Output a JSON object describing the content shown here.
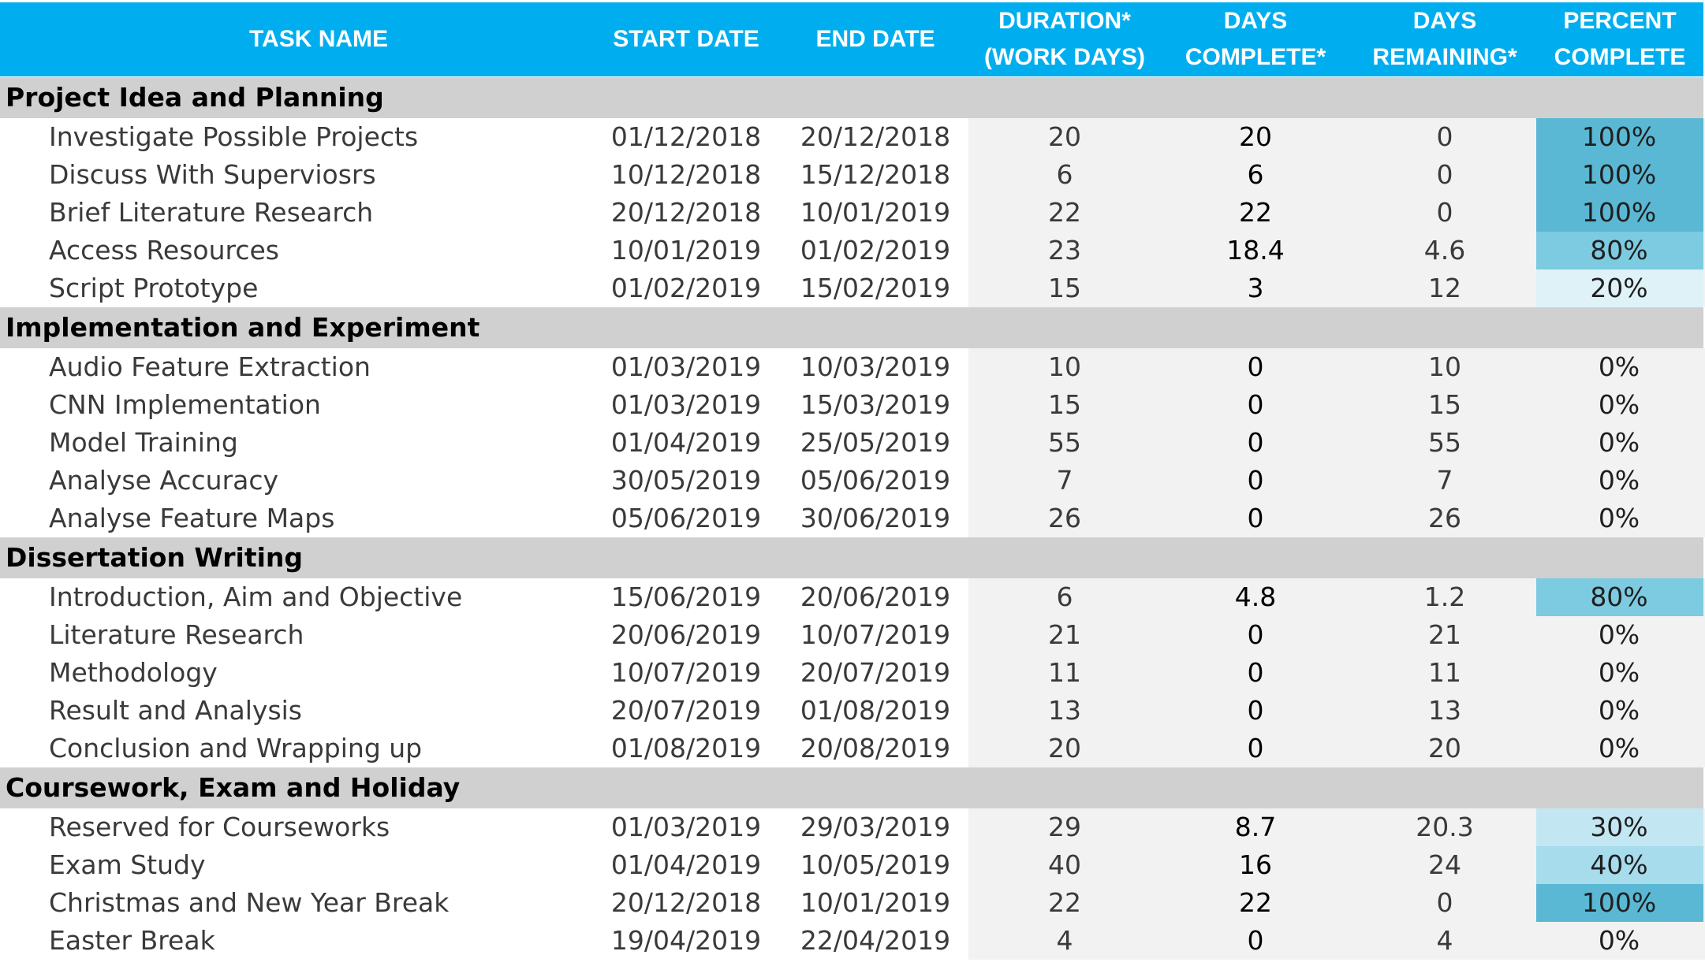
{
  "header": {
    "task_name": "TASK NAME",
    "start_date": "START DATE",
    "end_date": "END DATE",
    "duration_1": "DURATION*",
    "duration_2": "(WORK DAYS)",
    "days_complete_1": "DAYS",
    "days_complete_2": "COMPLETE*",
    "days_remaining_1": "DAYS",
    "days_remaining_2": "REMAINING*",
    "percent_1": "PERCENT",
    "percent_2": "COMPLETE"
  },
  "colors": {
    "header_bg": "#00aeef",
    "section_bg": "#d0d0d0",
    "pct_100": "#5ab8d4",
    "pct_80": "#7ccbe0",
    "pct_40": "#a6dcec",
    "pct_30": "#c3e7f2",
    "pct_20": "#def2f8"
  },
  "sections": [
    {
      "title": "Project Idea and Planning",
      "tasks": [
        {
          "name": "Investigate Possible Projects",
          "start": "01/12/2018",
          "end": "20/12/2018",
          "duration": "20",
          "days_complete": "20",
          "days_remaining": "0",
          "percent": "100%",
          "percent_value": 100
        },
        {
          "name": "Discuss With Superviosrs",
          "start": "10/12/2018",
          "end": "15/12/2018",
          "duration": "6",
          "days_complete": "6",
          "days_remaining": "0",
          "percent": "100%",
          "percent_value": 100
        },
        {
          "name": "Brief Literature Research",
          "start": "20/12/2018",
          "end": "10/01/2019",
          "duration": "22",
          "days_complete": "22",
          "days_remaining": "0",
          "percent": "100%",
          "percent_value": 100
        },
        {
          "name": "Access Resources",
          "start": "10/01/2019",
          "end": "01/02/2019",
          "duration": "23",
          "days_complete": "18.4",
          "days_remaining": "4.6",
          "percent": "80%",
          "percent_value": 80
        },
        {
          "name": "Script Prototype",
          "start": "01/02/2019",
          "end": "15/02/2019",
          "duration": "15",
          "days_complete": "3",
          "days_remaining": "12",
          "percent": "20%",
          "percent_value": 20
        }
      ]
    },
    {
      "title": "Implementation and Experiment",
      "tasks": [
        {
          "name": "Audio Feature Extraction",
          "start": "01/03/2019",
          "end": "10/03/2019",
          "duration": "10",
          "days_complete": "0",
          "days_remaining": "10",
          "percent": "0%",
          "percent_value": 0
        },
        {
          "name": "CNN Implementation",
          "start": "01/03/2019",
          "end": "15/03/2019",
          "duration": "15",
          "days_complete": "0",
          "days_remaining": "15",
          "percent": "0%",
          "percent_value": 0
        },
        {
          "name": "Model Training",
          "start": "01/04/2019",
          "end": "25/05/2019",
          "duration": "55",
          "days_complete": "0",
          "days_remaining": "55",
          "percent": "0%",
          "percent_value": 0
        },
        {
          "name": "Analyse Accuracy",
          "start": "30/05/2019",
          "end": "05/06/2019",
          "duration": "7",
          "days_complete": "0",
          "days_remaining": "7",
          "percent": "0%",
          "percent_value": 0
        },
        {
          "name": "Analyse Feature Maps",
          "start": "05/06/2019",
          "end": "30/06/2019",
          "duration": "26",
          "days_complete": "0",
          "days_remaining": "26",
          "percent": "0%",
          "percent_value": 0
        }
      ]
    },
    {
      "title": "Dissertation Writing",
      "tasks": [
        {
          "name": "Introduction, Aim and Objective",
          "start": "15/06/2019",
          "end": "20/06/2019",
          "duration": "6",
          "days_complete": "4.8",
          "days_remaining": "1.2",
          "percent": "80%",
          "percent_value": 80
        },
        {
          "name": "Literature Research",
          "start": "20/06/2019",
          "end": "10/07/2019",
          "duration": "21",
          "days_complete": "0",
          "days_remaining": "21",
          "percent": "0%",
          "percent_value": 0
        },
        {
          "name": "Methodology",
          "start": "10/07/2019",
          "end": "20/07/2019",
          "duration": "11",
          "days_complete": "0",
          "days_remaining": "11",
          "percent": "0%",
          "percent_value": 0
        },
        {
          "name": "Result and Analysis",
          "start": "20/07/2019",
          "end": "01/08/2019",
          "duration": "13",
          "days_complete": "0",
          "days_remaining": "13",
          "percent": "0%",
          "percent_value": 0
        },
        {
          "name": "Conclusion and Wrapping up",
          "start": "01/08/2019",
          "end": "20/08/2019",
          "duration": "20",
          "days_complete": "0",
          "days_remaining": "20",
          "percent": "0%",
          "percent_value": 0
        }
      ]
    },
    {
      "title": "Coursework, Exam and Holiday",
      "tasks": [
        {
          "name": "Reserved for Courseworks",
          "start": "01/03/2019",
          "end": "29/03/2019",
          "duration": "29",
          "days_complete": "8.7",
          "days_remaining": "20.3",
          "percent": "30%",
          "percent_value": 30
        },
        {
          "name": "Exam Study",
          "start": "01/04/2019",
          "end": "10/05/2019",
          "duration": "40",
          "days_complete": "16",
          "days_remaining": "24",
          "percent": "40%",
          "percent_value": 40
        },
        {
          "name": "Christmas and New Year Break",
          "start": "20/12/2018",
          "end": "10/01/2019",
          "duration": "22",
          "days_complete": "22",
          "days_remaining": "0",
          "percent": "100%",
          "percent_value": 100
        },
        {
          "name": "Easter Break",
          "start": "19/04/2019",
          "end": "22/04/2019",
          "duration": "4",
          "days_complete": "0",
          "days_remaining": "4",
          "percent": "0%",
          "percent_value": 0
        }
      ]
    }
  ]
}
